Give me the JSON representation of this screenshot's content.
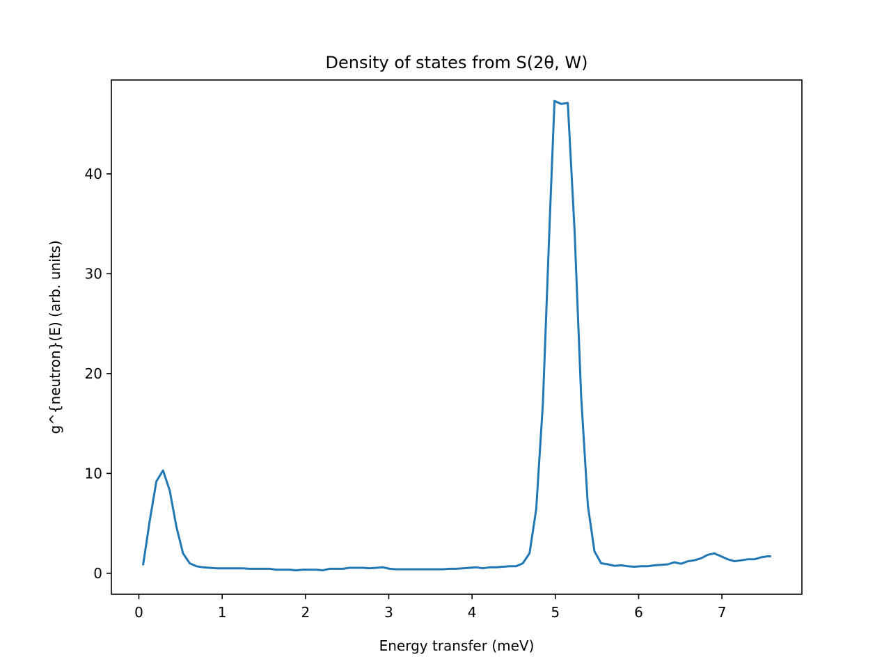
{
  "chart_data": {
    "type": "line",
    "title": "Density of states from S(2θ, W)",
    "xlabel": "Energy transfer (meV)",
    "ylabel": "g^{neutron}(E) (arb. units)",
    "xlim": [
      -0.33,
      7.96
    ],
    "ylim": [
      -2.1,
      49.4
    ],
    "xticks": [
      0,
      1,
      2,
      3,
      4,
      5,
      6,
      7
    ],
    "yticks": [
      0,
      10,
      20,
      30,
      40
    ],
    "grid": false,
    "legend": "none",
    "color": "#1f77b4",
    "series": [
      {
        "x": [
          0.05,
          0.13,
          0.21,
          0.29,
          0.37,
          0.45,
          0.53,
          0.61,
          0.69,
          0.77,
          0.85,
          0.93,
          1.01,
          1.09,
          1.17,
          1.25,
          1.33,
          1.41,
          1.49,
          1.57,
          1.65,
          1.73,
          1.81,
          1.89,
          1.97,
          2.05,
          2.13,
          2.21,
          2.29,
          2.37,
          2.45,
          2.53,
          2.61,
          2.69,
          2.77,
          2.85,
          2.93,
          3.01,
          3.09,
          3.17,
          3.25,
          3.33,
          3.41,
          3.49,
          3.57,
          3.65,
          3.73,
          3.81,
          3.89,
          3.97,
          4.05,
          4.13,
          4.21,
          4.29,
          4.37,
          4.45,
          4.53,
          4.61,
          4.69,
          4.77,
          4.85,
          4.93,
          4.99,
          5.07,
          5.15,
          5.23,
          5.31,
          5.39,
          5.47,
          5.55,
          5.63,
          5.71,
          5.79,
          5.87,
          5.95,
          6.03,
          6.11,
          6.19,
          6.27,
          6.35,
          6.43,
          6.51,
          6.59,
          6.67,
          6.75,
          6.83,
          6.91,
          6.99,
          7.07,
          7.15,
          7.23,
          7.31,
          7.39,
          7.47,
          7.55,
          7.59
        ],
        "y": [
          0.8,
          5.2,
          9.2,
          10.3,
          8.3,
          4.7,
          2.0,
          1.0,
          0.7,
          0.6,
          0.55,
          0.5,
          0.5,
          0.5,
          0.5,
          0.5,
          0.45,
          0.45,
          0.45,
          0.45,
          0.35,
          0.35,
          0.35,
          0.3,
          0.35,
          0.35,
          0.35,
          0.3,
          0.45,
          0.45,
          0.45,
          0.55,
          0.55,
          0.55,
          0.5,
          0.55,
          0.6,
          0.45,
          0.4,
          0.4,
          0.4,
          0.4,
          0.4,
          0.4,
          0.4,
          0.4,
          0.45,
          0.45,
          0.5,
          0.55,
          0.6,
          0.5,
          0.6,
          0.6,
          0.65,
          0.7,
          0.7,
          1.0,
          2.0,
          6.4,
          17.0,
          34.7,
          47.3,
          47.0,
          47.1,
          34.5,
          17.7,
          6.8,
          2.2,
          1.0,
          0.9,
          0.75,
          0.8,
          0.7,
          0.65,
          0.7,
          0.7,
          0.8,
          0.85,
          0.9,
          1.1,
          0.95,
          1.2,
          1.3,
          1.5,
          1.85,
          2.0,
          1.7,
          1.4,
          1.2,
          1.3,
          1.4,
          1.4,
          1.6,
          1.7,
          1.7
        ]
      }
    ]
  }
}
